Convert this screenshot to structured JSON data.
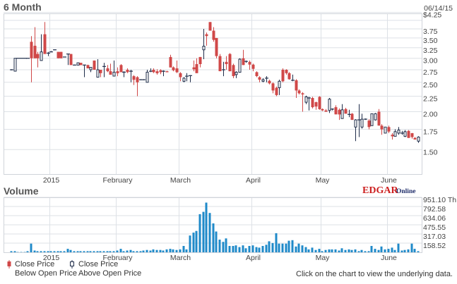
{
  "header": {
    "title": "6 Month",
    "date": "06/14/15"
  },
  "volume_title": "Volume",
  "logo": {
    "text_main": "EDGAR",
    "text_sub": "Online"
  },
  "legend": {
    "down_line1": "Close Price",
    "down_line2": "Below Open Price",
    "up_line1": "Close Price",
    "up_line2": "Above Open Price"
  },
  "footer_note": "Click on the chart to view the underlying data.",
  "colors": {
    "down": "#d04848",
    "up_outline": "#1f2d4a",
    "volume": "#1f8ac9",
    "grid": "#dde1e6"
  },
  "chart_data": [
    {
      "type": "candlestick",
      "title": "6 Month",
      "scale": "log",
      "ylim": [
        1.24,
        4.25
      ],
      "yticks": [
        "$4.25",
        "3.75",
        "3.50",
        "3.25",
        "3.00",
        "2.75",
        "2.50",
        "2.25",
        "2.00",
        "1.75",
        "1.50"
      ],
      "ytick_values": [
        4.25,
        3.75,
        3.5,
        3.25,
        3.0,
        2.75,
        2.5,
        2.25,
        2.0,
        1.75,
        1.5
      ],
      "grid_values": [
        4.25,
        4.0,
        3.75,
        3.5,
        3.25,
        3.0,
        2.75,
        2.5,
        2.25,
        2.0,
        1.75,
        1.5
      ],
      "xticks": [
        {
          "label": "2015",
          "date": "2015-01-02"
        },
        {
          "label": "February",
          "date": "2015-02-02"
        },
        {
          "label": "March",
          "date": "2015-03-02"
        },
        {
          "label": "April",
          "date": "2015-04-01"
        },
        {
          "label": "May",
          "date": "2015-05-01"
        },
        {
          "label": "June",
          "date": "2015-06-01"
        }
      ],
      "grid": true,
      "columns": [
        "date",
        "open",
        "high",
        "low",
        "close",
        "volume_th"
      ],
      "candles": [
        [
          "2014-12-15",
          2.75,
          2.76,
          2.74,
          2.75,
          20
        ],
        [
          "2014-12-16",
          2.72,
          3.0,
          2.72,
          3.0,
          20
        ],
        [
          "2014-12-17",
          3.0,
          3.0,
          3.0,
          3.0,
          5
        ],
        [
          "2014-12-18",
          3.0,
          3.0,
          3.0,
          3.0,
          5
        ],
        [
          "2014-12-19",
          3.0,
          3.0,
          3.0,
          3.0,
          5
        ],
        [
          "2014-12-22",
          3.0,
          3.0,
          3.0,
          3.0,
          20
        ],
        [
          "2014-12-23",
          3.4,
          3.55,
          2.5,
          3.0,
          150
        ],
        [
          "2014-12-24",
          3.3,
          3.8,
          3.0,
          3.0,
          30
        ],
        [
          "2014-12-26",
          3.1,
          3.15,
          2.8,
          3.0,
          20
        ],
        [
          "2014-12-29",
          2.95,
          3.6,
          2.95,
          3.15,
          20
        ],
        [
          "2014-12-30",
          3.6,
          3.95,
          3.1,
          3.1,
          20
        ],
        [
          "2014-12-31",
          3.1,
          3.15,
          3.05,
          3.12,
          20
        ],
        [
          "2015-01-02",
          3.15,
          3.17,
          3.14,
          3.15,
          20
        ],
        [
          "2015-01-05",
          3.2,
          3.21,
          3.19,
          3.2,
          20
        ],
        [
          "2015-01-06",
          3.15,
          3.15,
          3.0,
          3.0,
          20
        ],
        [
          "2015-01-07",
          3.15,
          3.15,
          3.0,
          3.0,
          20
        ],
        [
          "2015-01-08",
          3.03,
          3.03,
          3.03,
          3.03,
          20
        ],
        [
          "2015-01-09",
          3.09,
          3.1,
          2.85,
          3.1,
          60
        ],
        [
          "2015-01-12",
          3.1,
          3.1,
          2.85,
          2.85,
          40
        ],
        [
          "2015-01-13",
          2.85,
          2.86,
          2.84,
          2.85,
          20
        ],
        [
          "2015-01-14",
          2.85,
          2.9,
          2.85,
          2.9,
          20
        ],
        [
          "2015-01-15",
          2.9,
          2.9,
          2.85,
          2.85,
          20
        ],
        [
          "2015-01-16",
          2.85,
          2.86,
          2.6,
          2.85,
          20
        ],
        [
          "2015-01-20",
          2.85,
          2.86,
          2.78,
          2.78,
          20
        ],
        [
          "2015-01-21",
          2.75,
          2.8,
          2.7,
          2.8,
          20
        ],
        [
          "2015-01-22",
          2.95,
          2.95,
          2.75,
          2.75,
          20
        ],
        [
          "2015-01-23",
          2.6,
          2.98,
          2.6,
          2.75,
          20
        ],
        [
          "2015-01-26",
          2.75,
          2.75,
          2.6,
          2.68,
          20
        ],
        [
          "2015-01-27",
          2.82,
          2.9,
          2.6,
          2.82,
          20
        ],
        [
          "2015-01-28",
          2.78,
          2.85,
          2.7,
          2.72,
          20
        ],
        [
          "2015-01-29",
          2.72,
          2.88,
          2.65,
          2.65,
          20
        ],
        [
          "2015-01-30",
          2.62,
          2.95,
          2.62,
          2.7,
          20
        ],
        [
          "2015-02-02",
          2.72,
          2.8,
          2.62,
          2.68,
          30
        ],
        [
          "2015-02-03",
          2.85,
          2.87,
          2.7,
          2.7,
          60
        ],
        [
          "2015-02-04",
          2.68,
          2.72,
          2.6,
          2.7,
          20
        ],
        [
          "2015-02-05",
          2.75,
          2.78,
          2.68,
          2.7,
          30
        ],
        [
          "2015-02-06",
          2.72,
          2.75,
          2.5,
          2.72,
          40
        ],
        [
          "2015-02-09",
          2.62,
          2.64,
          2.45,
          2.55,
          20
        ],
        [
          "2015-02-10",
          2.6,
          2.62,
          2.25,
          2.5,
          20
        ],
        [
          "2015-02-11",
          2.55,
          2.56,
          2.54,
          2.55,
          20
        ],
        [
          "2015-02-12",
          2.55,
          2.56,
          2.54,
          2.55,
          30
        ],
        [
          "2015-02-13",
          2.5,
          2.75,
          2.5,
          2.7,
          40
        ],
        [
          "2015-02-17",
          2.72,
          2.78,
          2.7,
          2.72,
          30
        ],
        [
          "2015-02-18",
          2.75,
          2.78,
          2.68,
          2.7,
          50
        ],
        [
          "2015-02-19",
          2.72,
          2.76,
          2.65,
          2.68,
          40
        ],
        [
          "2015-02-20",
          2.74,
          2.76,
          2.66,
          2.7,
          40
        ],
        [
          "2015-02-23",
          2.72,
          2.74,
          2.62,
          2.72,
          30
        ],
        [
          "2015-02-24",
          2.72,
          2.73,
          2.7,
          2.7,
          50
        ],
        [
          "2015-02-25",
          3.03,
          3.08,
          2.8,
          2.8,
          60
        ],
        [
          "2015-02-26",
          2.8,
          2.82,
          2.72,
          2.74,
          50
        ],
        [
          "2015-02-27",
          2.78,
          2.95,
          2.68,
          2.7,
          40
        ],
        [
          "2015-03-02",
          2.68,
          2.7,
          2.52,
          2.6,
          50
        ],
        [
          "2015-03-03",
          2.52,
          2.6,
          2.5,
          2.58,
          110
        ],
        [
          "2015-03-04",
          2.62,
          2.68,
          2.52,
          2.62,
          50
        ],
        [
          "2015-03-05",
          2.62,
          2.64,
          2.5,
          2.63,
          290
        ],
        [
          "2015-03-06",
          2.8,
          2.95,
          2.72,
          2.76,
          340
        ],
        [
          "2015-03-09",
          2.87,
          3.0,
          2.68,
          2.68,
          370
        ],
        [
          "2015-03-10",
          3.03,
          3.03,
          2.8,
          2.87,
          660
        ],
        [
          "2015-03-11",
          3.2,
          3.75,
          2.98,
          3.29,
          700
        ],
        [
          "2015-03-12",
          3.6,
          3.65,
          3.3,
          3.55,
          860
        ],
        [
          "2015-03-13",
          3.95,
          3.95,
          3.7,
          3.7,
          680
        ],
        [
          "2015-03-16",
          3.7,
          3.8,
          3.4,
          3.45,
          500
        ],
        [
          "2015-03-17",
          3.5,
          3.5,
          3.0,
          3.05,
          360
        ],
        [
          "2015-03-18",
          3.05,
          3.1,
          2.72,
          2.72,
          220
        ],
        [
          "2015-03-19",
          2.74,
          2.92,
          2.62,
          2.75,
          180
        ],
        [
          "2015-03-20",
          2.92,
          3.05,
          2.75,
          2.87,
          240
        ],
        [
          "2015-03-23",
          3.1,
          3.12,
          2.72,
          2.72,
          110
        ],
        [
          "2015-03-24",
          2.85,
          2.88,
          2.58,
          2.62,
          110
        ],
        [
          "2015-03-25",
          2.65,
          2.72,
          2.58,
          2.7,
          120
        ],
        [
          "2015-03-26",
          2.7,
          3.0,
          2.7,
          2.98,
          90
        ],
        [
          "2015-03-27",
          3.0,
          3.2,
          2.85,
          2.85,
          120
        ],
        [
          "2015-03-30",
          2.92,
          2.95,
          2.9,
          2.93,
          70
        ],
        [
          "2015-03-31",
          2.92,
          2.95,
          2.75,
          2.86,
          110
        ],
        [
          "2015-04-01",
          2.86,
          2.88,
          2.72,
          2.77,
          120
        ],
        [
          "2015-04-02",
          2.7,
          2.72,
          2.6,
          2.62,
          90
        ],
        [
          "2015-04-06",
          2.6,
          2.62,
          2.5,
          2.55,
          80
        ],
        [
          "2015-04-07",
          2.52,
          2.58,
          2.5,
          2.55,
          110
        ],
        [
          "2015-04-08",
          2.57,
          2.62,
          2.5,
          2.58,
          130
        ],
        [
          "2015-04-09",
          2.53,
          2.55,
          2.46,
          2.48,
          190
        ],
        [
          "2015-04-10",
          2.48,
          2.5,
          2.3,
          2.35,
          160
        ],
        [
          "2015-04-13",
          2.4,
          2.42,
          2.25,
          2.27,
          330
        ],
        [
          "2015-04-14",
          2.4,
          2.55,
          2.27,
          2.52,
          150
        ],
        [
          "2015-04-15",
          2.75,
          2.78,
          2.5,
          2.52,
          150
        ],
        [
          "2015-04-16",
          2.75,
          2.76,
          2.65,
          2.68,
          150
        ],
        [
          "2015-04-17",
          2.68,
          2.7,
          2.55,
          2.56,
          200
        ],
        [
          "2015-04-20",
          2.53,
          2.65,
          2.52,
          2.54,
          210
        ],
        [
          "2015-04-21",
          2.54,
          2.56,
          2.22,
          2.35,
          100
        ],
        [
          "2015-04-22",
          2.35,
          2.37,
          2.28,
          2.3,
          150
        ],
        [
          "2015-04-23",
          2.3,
          2.32,
          2.0,
          2.28,
          120
        ],
        [
          "2015-04-24",
          2.15,
          2.26,
          2.12,
          2.24,
          90
        ],
        [
          "2015-04-27",
          2.21,
          2.24,
          2.02,
          2.22,
          50
        ],
        [
          "2015-04-28",
          2.22,
          2.24,
          2.05,
          2.07,
          80
        ],
        [
          "2015-04-29",
          2.15,
          2.16,
          2.03,
          2.08,
          40
        ],
        [
          "2015-04-30",
          2.24,
          2.25,
          2.03,
          2.04,
          60
        ],
        [
          "2015-05-01",
          2.04,
          2.05,
          2.01,
          2.02,
          20
        ],
        [
          "2015-05-04",
          2.02,
          2.04,
          2.0,
          2.0,
          40
        ],
        [
          "2015-05-05",
          2.02,
          2.22,
          1.98,
          2.2,
          50
        ],
        [
          "2015-05-06",
          2.03,
          2.05,
          2.02,
          2.04,
          50
        ],
        [
          "2015-05-07",
          2.07,
          2.1,
          1.96,
          1.96,
          50
        ],
        [
          "2015-05-08",
          2.03,
          2.05,
          1.88,
          1.96,
          30
        ],
        [
          "2015-05-11",
          1.9,
          2.12,
          1.9,
          2.03,
          70
        ],
        [
          "2015-05-12",
          2.04,
          2.06,
          1.97,
          1.97,
          40
        ],
        [
          "2015-05-13",
          1.96,
          2.03,
          1.92,
          1.96,
          50
        ],
        [
          "2015-05-14",
          1.97,
          1.98,
          1.88,
          1.88,
          40
        ],
        [
          "2015-05-15",
          1.78,
          1.89,
          1.6,
          1.88,
          50
        ],
        [
          "2015-05-18",
          1.87,
          2.12,
          1.65,
          1.88,
          20
        ],
        [
          "2015-05-19",
          1.78,
          1.97,
          1.76,
          1.89,
          40
        ],
        [
          "2015-05-20",
          1.89,
          1.9,
          1.88,
          1.89,
          20
        ],
        [
          "2015-05-21",
          1.87,
          1.89,
          1.75,
          1.78,
          20
        ],
        [
          "2015-05-22",
          1.8,
          1.97,
          1.8,
          1.97,
          110
        ],
        [
          "2015-05-26",
          1.88,
          1.98,
          1.87,
          1.97,
          60
        ],
        [
          "2015-05-27",
          2.0,
          2.04,
          1.8,
          1.8,
          40
        ],
        [
          "2015-05-28",
          1.8,
          1.82,
          1.68,
          1.75,
          100
        ],
        [
          "2015-05-29",
          1.7,
          1.78,
          1.7,
          1.78,
          50
        ],
        [
          "2015-06-01",
          1.78,
          1.8,
          1.7,
          1.72,
          60
        ],
        [
          "2015-06-02",
          1.68,
          1.7,
          1.62,
          1.66,
          80
        ],
        [
          "2015-06-03",
          1.66,
          1.75,
          1.66,
          1.72,
          40
        ],
        [
          "2015-06-04",
          1.7,
          1.78,
          1.68,
          1.74,
          150
        ],
        [
          "2015-06-05",
          1.7,
          1.73,
          1.68,
          1.7,
          30
        ],
        [
          "2015-06-08",
          1.66,
          1.74,
          1.65,
          1.72,
          40
        ],
        [
          "2015-06-09",
          1.73,
          1.74,
          1.64,
          1.64,
          50
        ],
        [
          "2015-06-10",
          1.7,
          1.7,
          1.63,
          1.65,
          150
        ],
        [
          "2015-06-11",
          1.64,
          1.65,
          1.62,
          1.62,
          60
        ],
        [
          "2015-06-12",
          1.6,
          1.66,
          1.58,
          1.65,
          20
        ]
      ]
    },
    {
      "type": "bar",
      "title": "Volume",
      "ylim": [
        0,
        951.1
      ],
      "yticks": [
        "951.10 Th",
        "792.58",
        "634.06",
        "475.55",
        "317.03",
        "158.52"
      ],
      "ytick_values": [
        951.1,
        792.58,
        634.06,
        475.55,
        317.03,
        158.52
      ],
      "grid": true,
      "values_source": "volume_th column of candles"
    }
  ]
}
